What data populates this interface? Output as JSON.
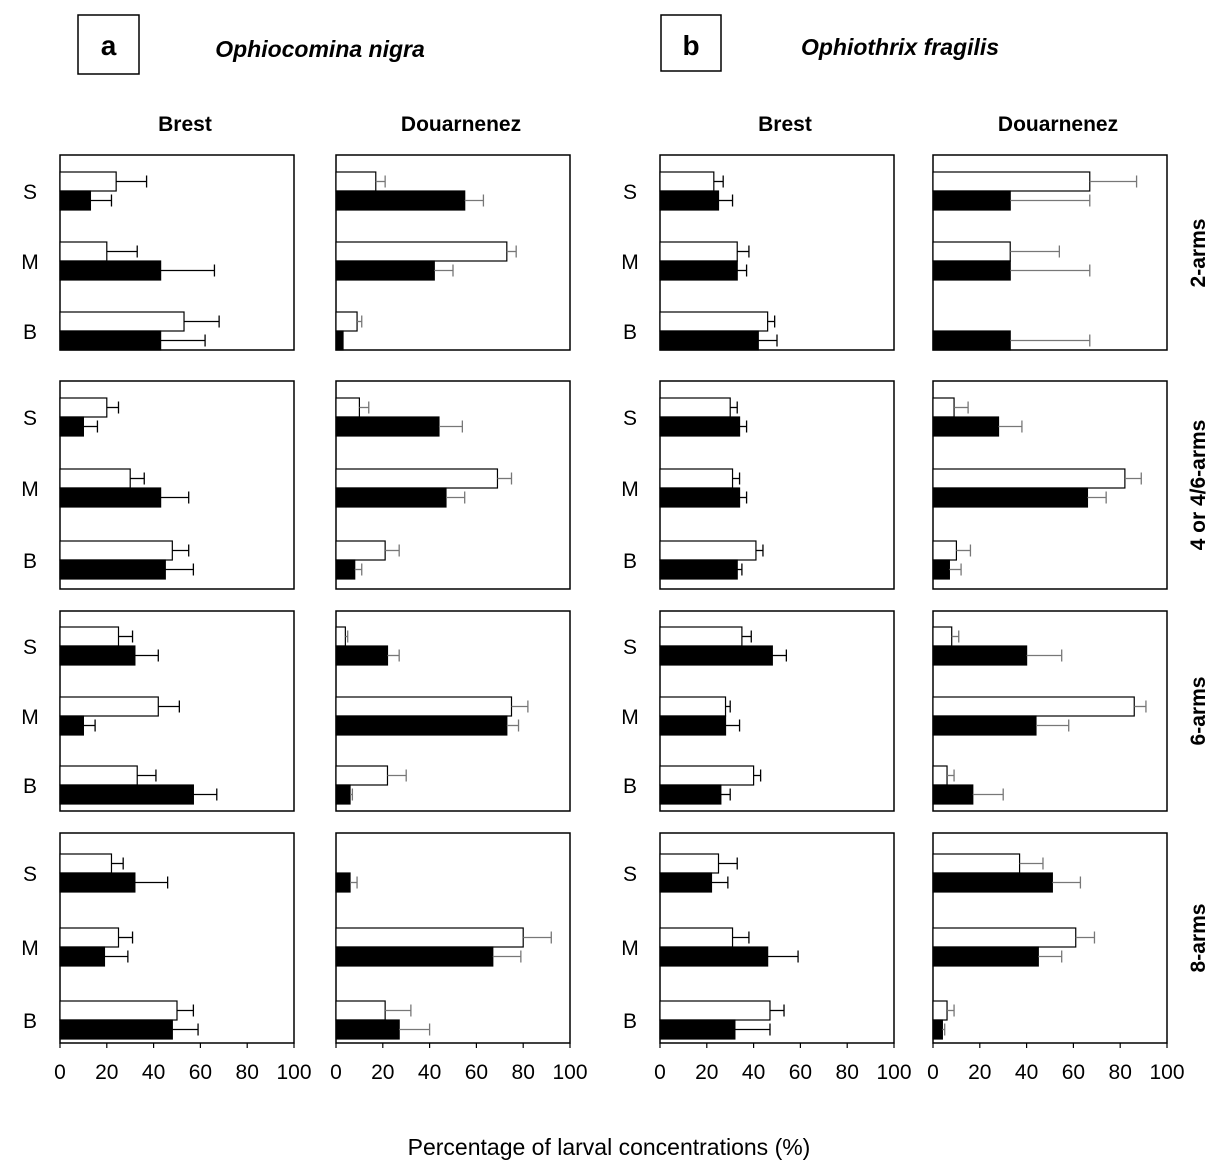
{
  "figure": {
    "xlabel": "Percentage of larval concentrations (%)",
    "panel_a": {
      "letter": "a",
      "species": "Ophiocomina nigra"
    },
    "panel_b": {
      "letter": "b",
      "species": "Ophiothrix fragilis"
    },
    "column_titles": [
      "Brest",
      "Douarnenez",
      "Brest",
      "Douarnenez"
    ],
    "row_labels": [
      "2-arms",
      "4 or 4/6-arms",
      "6-arms",
      "8-arms"
    ],
    "depth_labels": [
      "S",
      "M",
      "B"
    ],
    "x_ticks": [
      "0",
      "20",
      "40",
      "60",
      "80",
      "100"
    ]
  },
  "chart_data": [
    {
      "type": "bar",
      "orientation": "horizontal",
      "species": "Ophiocomina nigra",
      "site": "Brest",
      "stage": "2-arms",
      "categories": [
        "S",
        "M",
        "B"
      ],
      "series": [
        {
          "values": [
            24,
            20,
            53
          ],
          "errors": [
            13,
            13,
            15
          ],
          "color": "#ffffff"
        },
        {
          "values": [
            13,
            43,
            43
          ],
          "errors": [
            9,
            23,
            19
          ],
          "color": "#000000"
        }
      ],
      "xlim": [
        0,
        100
      ]
    },
    {
      "type": "bar",
      "orientation": "horizontal",
      "species": "Ophiocomina nigra",
      "site": "Douarnenez",
      "stage": "2-arms",
      "categories": [
        "S",
        "M",
        "B"
      ],
      "series": [
        {
          "values": [
            17,
            73,
            9
          ],
          "errors": [
            4,
            4,
            2
          ],
          "color": "#ffffff"
        },
        {
          "values": [
            55,
            42,
            3
          ],
          "errors": [
            8,
            8,
            0
          ],
          "color": "#000000"
        }
      ],
      "xlim": [
        0,
        100
      ]
    },
    {
      "type": "bar",
      "orientation": "horizontal",
      "species": "Ophiothrix fragilis",
      "site": "Brest",
      "stage": "2-arms",
      "categories": [
        "S",
        "M",
        "B"
      ],
      "series": [
        {
          "values": [
            23,
            33,
            46
          ],
          "errors": [
            4,
            5,
            3
          ],
          "color": "#ffffff"
        },
        {
          "values": [
            25,
            33,
            42
          ],
          "errors": [
            6,
            4,
            8
          ],
          "color": "#000000"
        }
      ],
      "xlim": [
        0,
        100
      ]
    },
    {
      "type": "bar",
      "orientation": "horizontal",
      "species": "Ophiothrix fragilis",
      "site": "Douarnenez",
      "stage": "2-arms",
      "categories": [
        "S",
        "M",
        "B"
      ],
      "series": [
        {
          "values": [
            67,
            33,
            0
          ],
          "errors": [
            20,
            21,
            0
          ],
          "color": "#ffffff"
        },
        {
          "values": [
            33,
            33,
            33
          ],
          "errors": [
            34,
            34,
            34
          ],
          "color": "#000000"
        }
      ],
      "xlim": [
        0,
        100
      ]
    },
    {
      "type": "bar",
      "orientation": "horizontal",
      "species": "Ophiocomina nigra",
      "site": "Brest",
      "stage": "4 or 4/6-arms",
      "categories": [
        "S",
        "M",
        "B"
      ],
      "series": [
        {
          "values": [
            20,
            30,
            48
          ],
          "errors": [
            5,
            6,
            7
          ],
          "color": "#ffffff"
        },
        {
          "values": [
            10,
            43,
            45
          ],
          "errors": [
            6,
            12,
            12
          ],
          "color": "#000000"
        }
      ],
      "xlim": [
        0,
        100
      ]
    },
    {
      "type": "bar",
      "orientation": "horizontal",
      "species": "Ophiocomina nigra",
      "site": "Douarnenez",
      "stage": "4 or 4/6-arms",
      "categories": [
        "S",
        "M",
        "B"
      ],
      "series": [
        {
          "values": [
            10,
            69,
            21
          ],
          "errors": [
            4,
            6,
            6
          ],
          "color": "#ffffff"
        },
        {
          "values": [
            44,
            47,
            8
          ],
          "errors": [
            10,
            8,
            3
          ],
          "color": "#000000"
        }
      ],
      "xlim": [
        0,
        100
      ]
    },
    {
      "type": "bar",
      "orientation": "horizontal",
      "species": "Ophiothrix fragilis",
      "site": "Brest",
      "stage": "4 or 4/6-arms",
      "categories": [
        "S",
        "M",
        "B"
      ],
      "series": [
        {
          "values": [
            30,
            31,
            41
          ],
          "errors": [
            3,
            3,
            3
          ],
          "color": "#ffffff"
        },
        {
          "values": [
            34,
            34,
            33
          ],
          "errors": [
            3,
            3,
            2
          ],
          "color": "#000000"
        }
      ],
      "xlim": [
        0,
        100
      ]
    },
    {
      "type": "bar",
      "orientation": "horizontal",
      "species": "Ophiothrix fragilis",
      "site": "Douarnenez",
      "stage": "4 or 4/6-arms",
      "categories": [
        "S",
        "M",
        "B"
      ],
      "series": [
        {
          "values": [
            9,
            82,
            10
          ],
          "errors": [
            6,
            7,
            6
          ],
          "color": "#ffffff"
        },
        {
          "values": [
            28,
            66,
            7
          ],
          "errors": [
            10,
            8,
            5
          ],
          "color": "#000000"
        }
      ],
      "xlim": [
        0,
        100
      ]
    },
    {
      "type": "bar",
      "orientation": "horizontal",
      "species": "Ophiocomina nigra",
      "site": "Brest",
      "stage": "6-arms",
      "categories": [
        "S",
        "M",
        "B"
      ],
      "series": [
        {
          "values": [
            25,
            42,
            33
          ],
          "errors": [
            6,
            9,
            8
          ],
          "color": "#ffffff"
        },
        {
          "values": [
            32,
            10,
            57
          ],
          "errors": [
            10,
            5,
            10
          ],
          "color": "#000000"
        }
      ],
      "xlim": [
        0,
        100
      ]
    },
    {
      "type": "bar",
      "orientation": "horizontal",
      "species": "Ophiocomina nigra",
      "site": "Douarnenez",
      "stage": "6-arms",
      "categories": [
        "S",
        "M",
        "B"
      ],
      "series": [
        {
          "values": [
            4,
            75,
            22
          ],
          "errors": [
            1,
            7,
            8
          ],
          "color": "#ffffff"
        },
        {
          "values": [
            22,
            73,
            6
          ],
          "errors": [
            5,
            5,
            1
          ],
          "color": "#000000"
        }
      ],
      "xlim": [
        0,
        100
      ]
    },
    {
      "type": "bar",
      "orientation": "horizontal",
      "species": "Ophiothrix fragilis",
      "site": "Brest",
      "stage": "6-arms",
      "categories": [
        "S",
        "M",
        "B"
      ],
      "series": [
        {
          "values": [
            35,
            28,
            40
          ],
          "errors": [
            4,
            2,
            3
          ],
          "color": "#ffffff"
        },
        {
          "values": [
            48,
            28,
            26
          ],
          "errors": [
            6,
            6,
            4
          ],
          "color": "#000000"
        }
      ],
      "xlim": [
        0,
        100
      ]
    },
    {
      "type": "bar",
      "orientation": "horizontal",
      "species": "Ophiothrix fragilis",
      "site": "Douarnenez",
      "stage": "6-arms",
      "categories": [
        "S",
        "M",
        "B"
      ],
      "series": [
        {
          "values": [
            8,
            86,
            6
          ],
          "errors": [
            3,
            5,
            3
          ],
          "color": "#ffffff"
        },
        {
          "values": [
            40,
            44,
            17
          ],
          "errors": [
            15,
            14,
            13
          ],
          "color": "#000000"
        }
      ],
      "xlim": [
        0,
        100
      ]
    },
    {
      "type": "bar",
      "orientation": "horizontal",
      "species": "Ophiocomina nigra",
      "site": "Brest",
      "stage": "8-arms",
      "categories": [
        "S",
        "M",
        "B"
      ],
      "series": [
        {
          "values": [
            22,
            25,
            50
          ],
          "errors": [
            5,
            6,
            7
          ],
          "color": "#ffffff"
        },
        {
          "values": [
            32,
            19,
            48
          ],
          "errors": [
            14,
            10,
            11
          ],
          "color": "#000000"
        }
      ],
      "xlim": [
        0,
        100
      ]
    },
    {
      "type": "bar",
      "orientation": "horizontal",
      "species": "Ophiocomina nigra",
      "site": "Douarnenez",
      "stage": "8-arms",
      "categories": [
        "S",
        "M",
        "B"
      ],
      "series": [
        {
          "values": [
            0,
            80,
            21
          ],
          "errors": [
            0,
            12,
            11
          ],
          "color": "#ffffff"
        },
        {
          "values": [
            6,
            67,
            27
          ],
          "errors": [
            3,
            12,
            13
          ],
          "color": "#000000"
        }
      ],
      "xlim": [
        0,
        100
      ]
    },
    {
      "type": "bar",
      "orientation": "horizontal",
      "species": "Ophiothrix fragilis",
      "site": "Brest",
      "stage": "8-arms",
      "categories": [
        "S",
        "M",
        "B"
      ],
      "series": [
        {
          "values": [
            25,
            31,
            47
          ],
          "errors": [
            8,
            7,
            6
          ],
          "color": "#ffffff"
        },
        {
          "values": [
            22,
            46,
            32
          ],
          "errors": [
            7,
            13,
            15
          ],
          "color": "#000000"
        }
      ],
      "xlim": [
        0,
        100
      ]
    },
    {
      "type": "bar",
      "orientation": "horizontal",
      "species": "Ophiothrix fragilis",
      "site": "Douarnenez",
      "stage": "8-arms",
      "categories": [
        "S",
        "M",
        "B"
      ],
      "series": [
        {
          "values": [
            37,
            61,
            6
          ],
          "errors": [
            10,
            8,
            3
          ],
          "color": "#ffffff"
        },
        {
          "values": [
            51,
            45,
            4
          ],
          "errors": [
            12,
            10,
            1
          ],
          "color": "#000000"
        }
      ],
      "xlim": [
        0,
        100
      ]
    }
  ]
}
